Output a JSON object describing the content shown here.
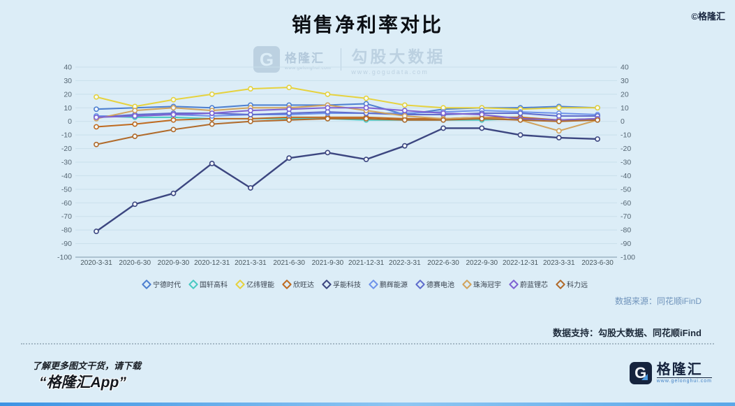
{
  "page": {
    "title": "销售净利率对比",
    "copyright": "©格隆汇"
  },
  "watermark": {
    "logo_letter": "G",
    "brand": "格隆汇",
    "brand_url": "www.gelonghui.com",
    "product": "勾股大数据",
    "product_url": "www.gogudata.com"
  },
  "chart_data": {
    "type": "line",
    "title": "销售净利率对比",
    "xlabel": "",
    "ylabel": "",
    "ylim": [
      -100,
      40
    ],
    "ytick_step": 10,
    "grid": true,
    "legend_position": "bottom",
    "marker": "hollow-circle",
    "categories": [
      "2020-3-31",
      "2020-6-30",
      "2020-9-30",
      "2020-12-31",
      "2021-3-31",
      "2021-6-30",
      "2021-9-30",
      "2021-12-31",
      "2022-3-31",
      "2022-6-30",
      "2022-9-30",
      "2022-12-31",
      "2023-3-31",
      "2023-6-30"
    ],
    "series": [
      {
        "name": "宁德时代",
        "color": "#4d7fd0",
        "values": [
          9,
          10,
          11,
          10,
          12,
          12,
          12,
          13,
          5,
          9,
          10,
          10,
          11,
          10
        ]
      },
      {
        "name": "国轩高科",
        "color": "#49c9c2",
        "values": [
          4,
          3,
          3,
          2,
          2,
          2,
          2,
          1,
          1,
          1,
          1,
          2,
          1,
          1
        ]
      },
      {
        "name": "亿纬锂能",
        "color": "#e6d23e",
        "values": [
          18,
          11,
          16,
          20,
          24,
          25,
          20,
          17,
          12,
          10,
          10,
          9,
          10,
          10
        ]
      },
      {
        "name": "欣旺达",
        "color": "#bf6a1f",
        "values": [
          -4,
          -2,
          1,
          2,
          2,
          3,
          3,
          3,
          2,
          2,
          3,
          3,
          1,
          2
        ]
      },
      {
        "name": "孚能科技",
        "color": "#3c4680",
        "values": [
          -81,
          -61,
          -53,
          -31,
          -49,
          -27,
          -23,
          -28,
          -18,
          -5,
          -5,
          -10,
          -12,
          -13
        ]
      },
      {
        "name": "鹏辉能源",
        "color": "#6e93ea",
        "values": [
          4,
          4,
          5,
          4,
          5,
          5,
          6,
          6,
          6,
          7,
          8,
          7,
          6,
          5
        ]
      },
      {
        "name": "德赛电池",
        "color": "#5f6ccc",
        "values": [
          3,
          5,
          6,
          6,
          5,
          6,
          7,
          6,
          5,
          5,
          6,
          6,
          4,
          4
        ]
      },
      {
        "name": "珠海冠宇",
        "color": "#d2a35c",
        "values": [
          2,
          8,
          10,
          8,
          10,
          10,
          12,
          8,
          4,
          2,
          3,
          1,
          -7,
          1
        ]
      },
      {
        "name": "蔚蓝锂芯",
        "color": "#7e62d2",
        "values": [
          3,
          4,
          5,
          6,
          8,
          9,
          10,
          10,
          8,
          6,
          5,
          2,
          1,
          2
        ]
      },
      {
        "name": "科力远",
        "color": "#b06a2a",
        "values": [
          -17,
          -11,
          -6,
          -2,
          0,
          1,
          2,
          2,
          1,
          1,
          2,
          1,
          0,
          1
        ]
      }
    ]
  },
  "footer": {
    "source_note": "数据来源：同花顺iFinD",
    "support_note": "数据支持：勾股大数据、同花顺iFind",
    "promo_line1": "了解更多图文干货，请下载",
    "promo_line2": "“格隆汇App”",
    "logo_letter": "G",
    "logo_text": "格隆汇",
    "logo_url": "www.gelonghui.com"
  },
  "colors": {
    "background": "#dcedf7",
    "gridline": "#c9dfeb",
    "axis_line": "#90a8b8",
    "tick_label": "#556673",
    "bottom_bar_blue": "#3d93e3"
  }
}
